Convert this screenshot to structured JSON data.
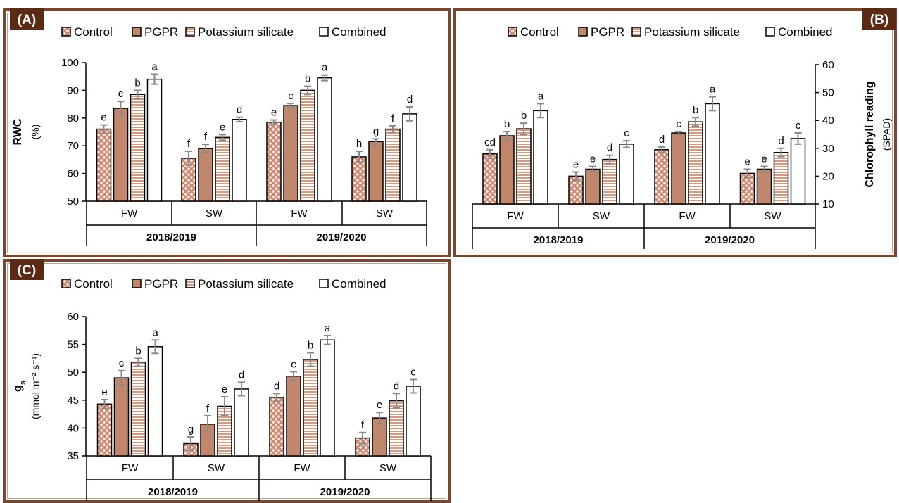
{
  "colors": {
    "border": "#7a4630",
    "label_box": "#5a2a12",
    "control": "#c9826a",
    "pgpr": "#c0876c",
    "potassium": "#d79a7e",
    "combined": "#ffffff",
    "error_bar": "#8a8a8a"
  },
  "chart_data": [
    {
      "type": "bar",
      "panel_label": "(A)",
      "ylabel": "RWC",
      "yunit": "(%)",
      "ylim": [
        50,
        100
      ],
      "yticks": [
        50,
        60,
        70,
        80,
        90,
        100
      ],
      "axis_side": "left",
      "legend_position": "top",
      "legend": [
        "Control",
        "PGPR",
        "Potassium silicate",
        "Combined"
      ],
      "groups": [
        "FW",
        "SW",
        "FW",
        "SW"
      ],
      "seasons": [
        "2018/2019",
        "2019/2020"
      ],
      "series": [
        {
          "name": "Control",
          "values": [
            76,
            65.5,
            78.5,
            66
          ],
          "errors": [
            1.5,
            2.5,
            0.8,
            2
          ],
          "letters": [
            "e",
            "f",
            "e",
            "h"
          ]
        },
        {
          "name": "PGPR",
          "values": [
            83.5,
            69,
            84.5,
            71.5
          ],
          "errors": [
            2.5,
            1.5,
            0.8,
            1
          ],
          "letters": [
            "c",
            "f",
            "c",
            "g"
          ]
        },
        {
          "name": "Potassium silicate",
          "values": [
            88.5,
            73,
            90,
            76
          ],
          "errors": [
            1.5,
            1,
            1.5,
            1.2
          ],
          "letters": [
            "b",
            "e",
            "b",
            "f"
          ]
        },
        {
          "name": "Combined",
          "values": [
            94,
            79.5,
            94.5,
            81.5
          ],
          "errors": [
            1.8,
            0.8,
            1,
            2.5
          ],
          "letters": [
            "a",
            "d",
            "a",
            "d"
          ]
        }
      ]
    },
    {
      "type": "bar",
      "panel_label": "(B)",
      "ylabel": "Chlorophyll reading",
      "yunit": "(SPAD)",
      "ylim": [
        10,
        60
      ],
      "yticks": [
        10,
        20,
        30,
        40,
        50,
        60
      ],
      "axis_side": "right",
      "legend_position": "top",
      "legend": [
        "Control",
        "PGPR",
        "Potassium silicate",
        "Combined"
      ],
      "groups": [
        "FW",
        "SW",
        "FW",
        "SW"
      ],
      "seasons": [
        "2018/2019",
        "2019/2020"
      ],
      "series": [
        {
          "name": "Control",
          "values": [
            28,
            20,
            29.5,
            21
          ],
          "errors": [
            1.5,
            1.5,
            1,
            1.5
          ],
          "letters": [
            "cd",
            "e",
            "d",
            "e"
          ]
        },
        {
          "name": "PGPR",
          "values": [
            34.5,
            22.5,
            35.5,
            22.5
          ],
          "errors": [
            1.5,
            1,
            0.5,
            1
          ],
          "letters": [
            "b",
            "e",
            "c",
            "e"
          ]
        },
        {
          "name": "Potassium silicate",
          "values": [
            37,
            26,
            39.5,
            28.5
          ],
          "errors": [
            2,
            1.5,
            1.5,
            1.5
          ],
          "letters": [
            "b",
            "d",
            "b",
            "d"
          ]
        },
        {
          "name": "Combined",
          "values": [
            43.5,
            31.5,
            46,
            33.5
          ],
          "errors": [
            2.5,
            1.2,
            2.5,
            2
          ],
          "letters": [
            "a",
            "c",
            "a",
            "c"
          ]
        }
      ]
    },
    {
      "type": "bar",
      "panel_label": "(C)",
      "ylabel": "g",
      "ylabel_sub": "s",
      "yunit": "(mmol m⁻² s⁻¹)",
      "ylim": [
        35,
        60
      ],
      "yticks": [
        35,
        40,
        45,
        50,
        55,
        60
      ],
      "axis_side": "left",
      "legend_position": "top",
      "legend": [
        "Control",
        "PGPR",
        "Potassium silicate",
        "Combined"
      ],
      "groups": [
        "FW",
        "SW",
        "FW",
        "SW"
      ],
      "seasons": [
        "2018/2019",
        "2019/2020"
      ],
      "series": [
        {
          "name": "Control",
          "values": [
            44.3,
            37.2,
            45.5,
            38.2
          ],
          "errors": [
            0.8,
            1.2,
            0.7,
            1
          ],
          "letters": [
            "e",
            "g",
            "d",
            "f"
          ]
        },
        {
          "name": "PGPR",
          "values": [
            49,
            40.7,
            49.3,
            41.8
          ],
          "errors": [
            1.3,
            1.5,
            0.8,
            1
          ],
          "letters": [
            "c",
            "f",
            "c",
            "e"
          ]
        },
        {
          "name": "Potassium silicate",
          "values": [
            51.8,
            43.9,
            52.3,
            44.9
          ],
          "errors": [
            0.7,
            1.7,
            1.2,
            1.3
          ],
          "letters": [
            "b",
            "e",
            "b",
            "d"
          ]
        },
        {
          "name": "Combined",
          "values": [
            54.6,
            47,
            55.8,
            47.5
          ],
          "errors": [
            1.2,
            1.2,
            0.8,
            1.2
          ],
          "letters": [
            "a",
            "d",
            "a",
            "c"
          ]
        }
      ]
    }
  ]
}
